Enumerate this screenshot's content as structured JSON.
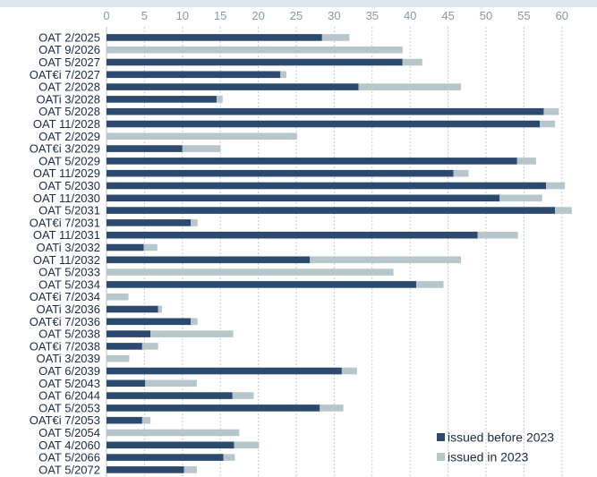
{
  "chart_data": {
    "type": "bar",
    "orientation": "horizontal",
    "stacked": true,
    "title": "",
    "xlabel": "",
    "ylabel": "",
    "xlim": [
      0,
      65
    ],
    "xticks": [
      0,
      5,
      10,
      15,
      20,
      25,
      30,
      35,
      40,
      45,
      50,
      55,
      60
    ],
    "x_axis_position": "top",
    "grid": "vertical dotted",
    "legend_position": "bottom-right",
    "categories": [
      "OAT 2/2025",
      "OAT 9/2026",
      "OAT 5/2027",
      "OAT€i 7/2027",
      "OAT 2/2028",
      "OATi 3/2028",
      "OAT 5/2028",
      "OAT 11/2028",
      "OAT 2/2029",
      "OAT€i 3/2029",
      "OAT 5/2029",
      "OAT 11/2029",
      "OAT 5/2030",
      "OAT 11/2030",
      "OAT 5/2031",
      "OAT€i 7/2031",
      "OAT 11/2031",
      "OATi 3/2032",
      "OAT 11/2032",
      "OAT 5/2033",
      "OAT 5/2034",
      "OAT€i 7/2034",
      "OATi 3/2036",
      "OAT€i 7/2036",
      "OAT 5/2038",
      "OAT€i 7/2038",
      "OATi 3/2039",
      "OAT 6/2039",
      "OAT 5/2043",
      "OAT 6/2044",
      "OAT 5/2053",
      "OAT€i 7/2053",
      "OAT 5/2054",
      "OAT 4/2060",
      "OAT 5/2066",
      "OAT 5/2072"
    ],
    "series": [
      {
        "name": "issued before 2023",
        "color": "#2b4a6e",
        "values": [
          28.4,
          0,
          39.0,
          22.9,
          33.2,
          14.5,
          57.6,
          57.1,
          0,
          10.0,
          54.1,
          45.7,
          57.9,
          51.8,
          59.1,
          11.1,
          48.9,
          4.9,
          26.8,
          0,
          40.8,
          0,
          6.8,
          11.1,
          5.8,
          4.7,
          0,
          31.0,
          5.1,
          16.6,
          28.1,
          4.7,
          0,
          16.8,
          15.4,
          10.2
        ]
      },
      {
        "name": "issued in 2023",
        "color": "#b6c6cb",
        "values": [
          3.6,
          39.0,
          2.6,
          0.8,
          13.5,
          0.8,
          2.0,
          2.0,
          25.1,
          5.0,
          2.5,
          2.0,
          2.5,
          5.6,
          2.2,
          0.9,
          5.3,
          1.8,
          19.9,
          37.8,
          3.6,
          2.9,
          0.5,
          0.9,
          10.9,
          2.1,
          3.0,
          2.0,
          6.8,
          2.8,
          3.1,
          1.1,
          17.5,
          3.3,
          1.5,
          1.7
        ]
      }
    ]
  }
}
